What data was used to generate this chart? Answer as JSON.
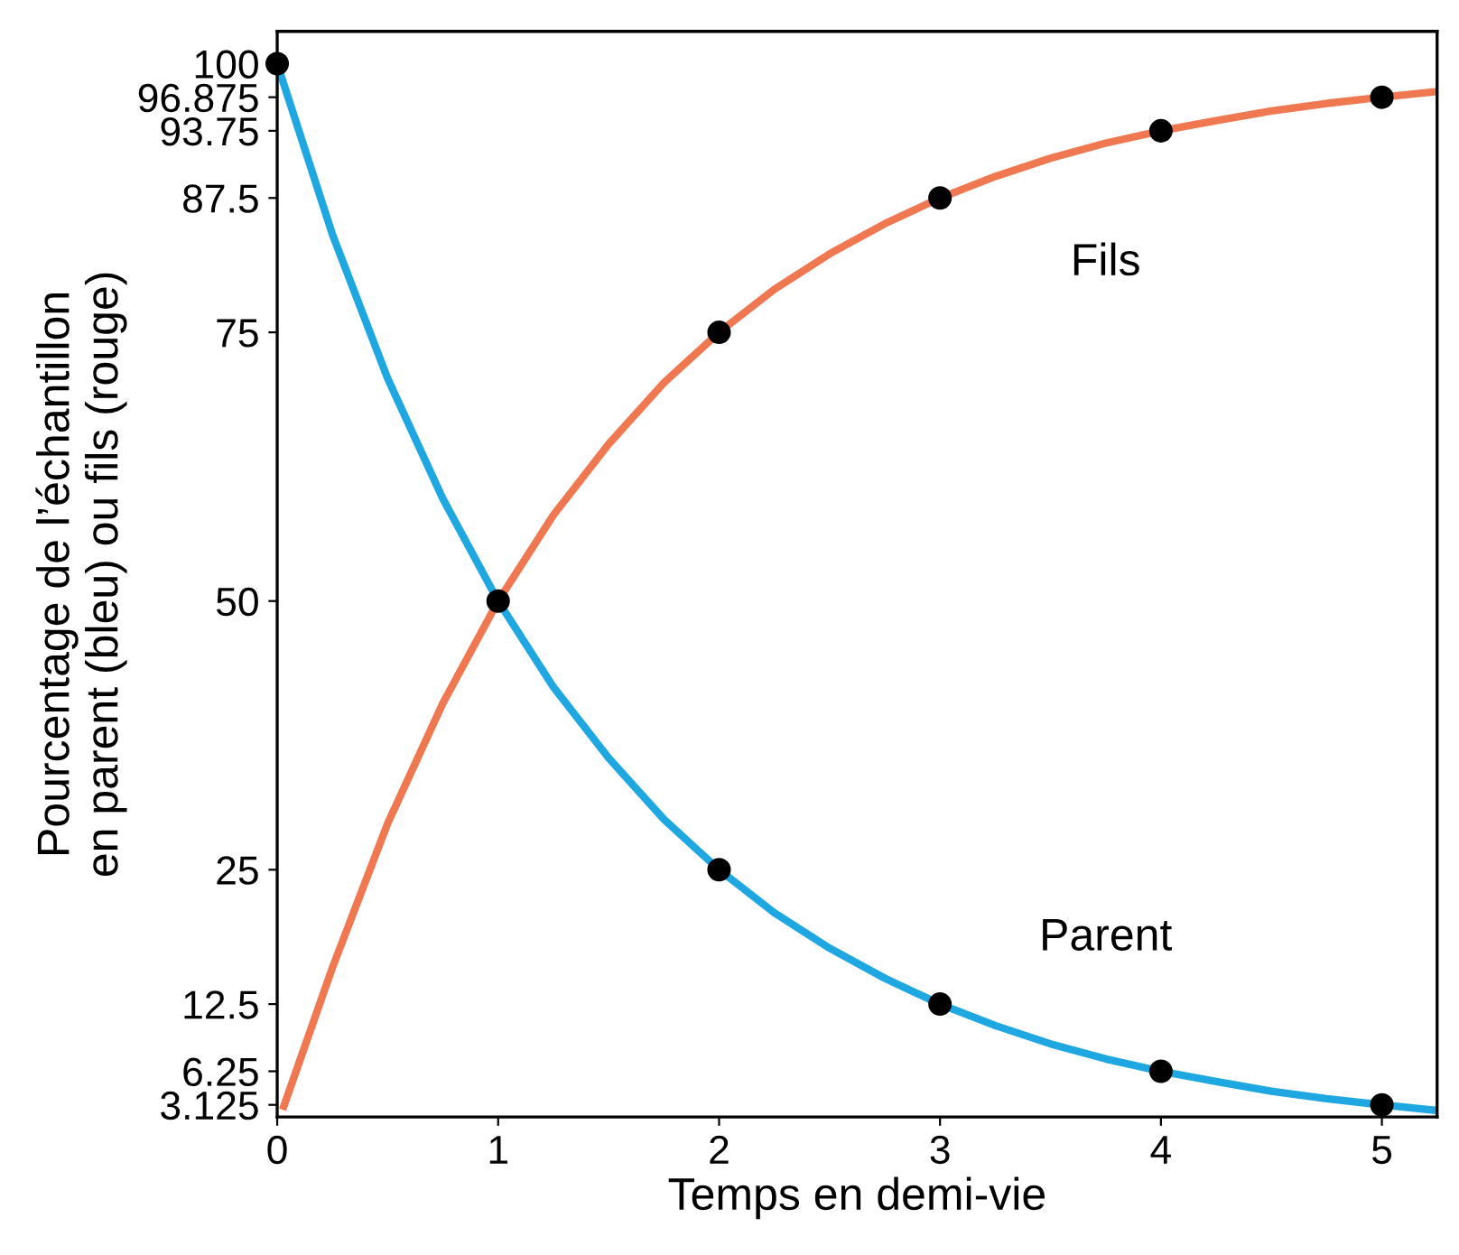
{
  "chart_data": {
    "type": "line",
    "xlabel": "Temps en demi-vie",
    "ylabel": "Pourcentage de l’échantillon\nen parent (bleu) ou fils (rouge)",
    "xlim": [
      0,
      5.25
    ],
    "xticks": [
      0,
      1,
      2,
      3,
      4,
      5
    ],
    "ylim": [
      2,
      103
    ],
    "yticks": [
      3.125,
      6.25,
      12.5,
      25,
      50,
      75,
      87.5,
      93.75,
      96.875,
      100
    ],
    "grid": false,
    "line_style": "solid",
    "series": [
      {
        "name": "Parent",
        "color": "#1ea7e1",
        "x": [
          0,
          0.25,
          0.5,
          0.75,
          1,
          1.25,
          1.5,
          1.75,
          2,
          2.25,
          2.5,
          2.75,
          3,
          3.25,
          3.5,
          3.75,
          4,
          4.25,
          4.5,
          4.75,
          5,
          5.25
        ],
        "values": [
          100,
          84.1,
          70.7,
          59.5,
          50,
          42.0,
          35.4,
          29.7,
          25,
          21.0,
          17.7,
          14.9,
          12.5,
          10.5,
          8.8,
          7.4,
          6.25,
          5.3,
          4.4,
          3.7,
          3.125,
          2.6
        ]
      },
      {
        "name": "Fils",
        "color": "#f07850",
        "x": [
          0.03,
          0.25,
          0.5,
          0.75,
          1,
          1.25,
          1.5,
          1.75,
          2,
          2.25,
          2.5,
          2.75,
          3,
          3.25,
          3.5,
          3.75,
          4,
          4.25,
          4.5,
          4.75,
          5,
          5.25
        ],
        "values": [
          3.0,
          15.9,
          29.3,
          40.5,
          50,
          58.0,
          64.6,
          70.3,
          75,
          79.0,
          82.3,
          85.1,
          87.5,
          89.5,
          91.2,
          92.6,
          93.75,
          94.7,
          95.6,
          96.3,
          96.875,
          97.4
        ]
      },
      {
        "type": "scatter",
        "color": "#000000",
        "marker": "circle",
        "x": [
          0,
          1,
          2,
          3,
          4,
          5
        ],
        "values": [
          100,
          50,
          25,
          12.5,
          6.25,
          3.125
        ]
      },
      {
        "type": "scatter",
        "color": "#000000",
        "marker": "circle",
        "x": [
          2,
          3,
          4,
          5
        ],
        "values": [
          75,
          87.5,
          93.75,
          96.875
        ]
      }
    ]
  }
}
